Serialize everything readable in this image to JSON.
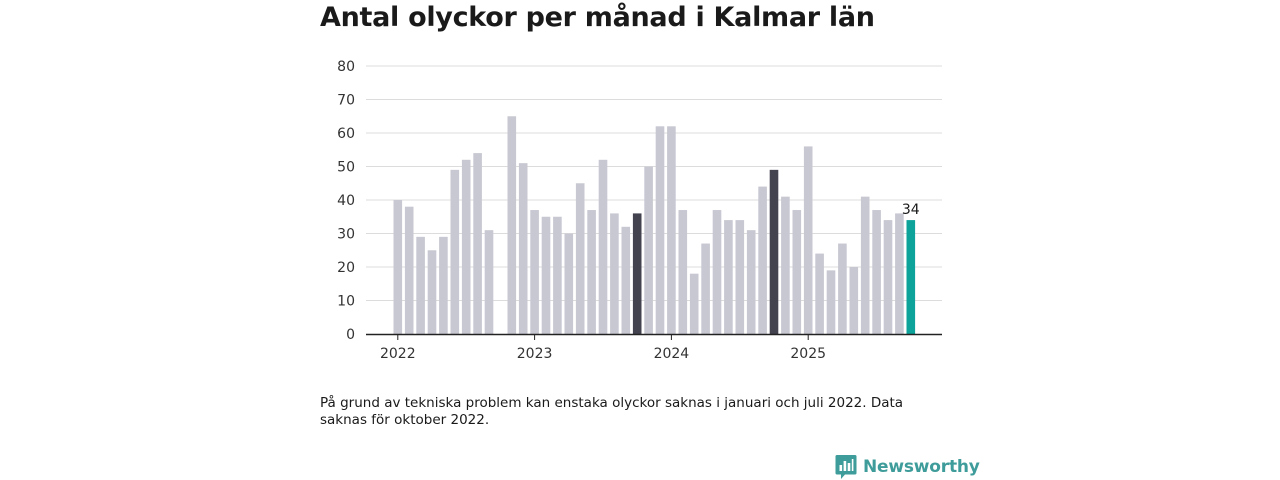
{
  "title": "Antal olyckor per månad i Kalmar län",
  "note": "På grund av tekniska problem kan enstaka olyckor saknas i januari och juli 2022. Data saknas för oktober 2022.",
  "brand": {
    "name": "Newsworthy",
    "icon": "newsworthy-logo-icon"
  },
  "colors": {
    "bar": "#c8c8d2",
    "highlight": "#43434f",
    "latest": "#0da39a",
    "grid": "#dcdcdc",
    "axis": "#222222",
    "brand": "#3e9c9a"
  },
  "chart_data": {
    "type": "bar",
    "title": "Antal olyckor per månad i Kalmar län",
    "xlabel": "",
    "ylabel": "",
    "ylim": [
      0,
      80
    ],
    "yticks": [
      0,
      10,
      20,
      30,
      40,
      50,
      60,
      70,
      80
    ],
    "grid": true,
    "x_tick_labels": [
      {
        "label": "2022",
        "month_index": 0
      },
      {
        "label": "2023",
        "month_index": 12
      },
      {
        "label": "2024",
        "month_index": 24
      },
      {
        "label": "2025",
        "month_index": 36
      }
    ],
    "months": [
      "2022-01",
      "2022-02",
      "2022-03",
      "2022-04",
      "2022-05",
      "2022-06",
      "2022-07",
      "2022-08",
      "2022-09",
      "2022-10",
      "2022-11",
      "2022-12",
      "2023-01",
      "2023-02",
      "2023-03",
      "2023-04",
      "2023-05",
      "2023-06",
      "2023-07",
      "2023-08",
      "2023-09",
      "2023-10",
      "2023-11",
      "2023-12",
      "2024-01",
      "2024-02",
      "2024-03",
      "2024-04",
      "2024-05",
      "2024-06",
      "2024-07",
      "2024-08",
      "2024-09",
      "2024-10",
      "2024-11",
      "2024-12",
      "2025-01",
      "2025-02",
      "2025-03",
      "2025-04",
      "2025-05",
      "2025-06",
      "2025-07",
      "2025-08",
      "2025-09",
      "2025-10"
    ],
    "values": [
      40,
      38,
      29,
      25,
      29,
      49,
      52,
      54,
      31,
      null,
      65,
      51,
      37,
      35,
      35,
      30,
      45,
      37,
      52,
      36,
      32,
      36,
      50,
      62,
      62,
      37,
      18,
      27,
      37,
      34,
      34,
      31,
      44,
      49,
      41,
      37,
      56,
      24,
      19,
      27,
      20,
      41,
      37,
      34,
      36,
      34
    ],
    "highlighted": [
      "2023-10",
      "2024-10"
    ],
    "latest": "2025-10",
    "data_labels": [
      {
        "month": "2025-10",
        "label": "34"
      }
    ]
  }
}
